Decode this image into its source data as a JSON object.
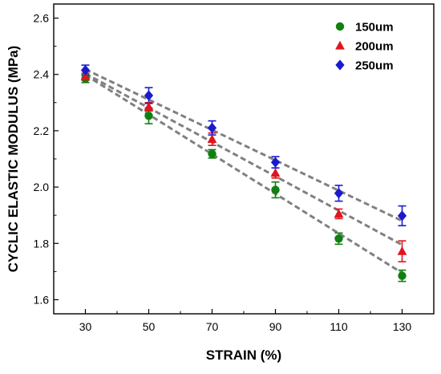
{
  "chart_data": {
    "type": "scatter",
    "title": "",
    "xlabel": "STRAIN (%)",
    "ylabel": "CYCLIC ELASTIC MODULUS (MPa)",
    "xlim": [
      20,
      140
    ],
    "ylim": [
      1.55,
      2.65
    ],
    "x_ticks": [
      30,
      50,
      70,
      90,
      110,
      130
    ],
    "y_ticks": [
      1.6,
      1.8,
      2.0,
      2.2,
      2.4,
      2.6
    ],
    "y_tick_labels": [
      "1.6",
      "1.8",
      "2.0",
      "2.2",
      "2.4",
      "2.6"
    ],
    "legend_position": "top-right",
    "grid": false,
    "series": [
      {
        "name": "150um",
        "marker": "circle",
        "color": "#108010",
        "x": [
          30,
          50,
          70,
          90,
          110,
          130
        ],
        "y": [
          2.385,
          2.253,
          2.118,
          1.99,
          1.817,
          1.685
        ],
        "error": [
          0.014,
          0.028,
          0.015,
          0.028,
          0.02,
          0.02
        ],
        "fit": [
          2.398,
          1.695
        ]
      },
      {
        "name": "200um",
        "marker": "triangle",
        "color": "#e0151e",
        "x": [
          30,
          50,
          70,
          90,
          110,
          130
        ],
        "y": [
          2.392,
          2.285,
          2.17,
          2.05,
          1.905,
          1.772
        ],
        "error": [
          0.012,
          0.015,
          0.022,
          0.018,
          0.017,
          0.037
        ],
        "fit": [
          2.403,
          1.795
        ]
      },
      {
        "name": "250um",
        "marker": "diamond",
        "color": "#1a1ad0",
        "x": [
          30,
          50,
          70,
          90,
          110,
          130
        ],
        "y": [
          2.415,
          2.325,
          2.21,
          2.088,
          1.978,
          1.898
        ],
        "error": [
          0.018,
          0.028,
          0.025,
          0.02,
          0.028,
          0.035
        ],
        "fit": [
          2.418,
          1.88
        ]
      }
    ]
  }
}
